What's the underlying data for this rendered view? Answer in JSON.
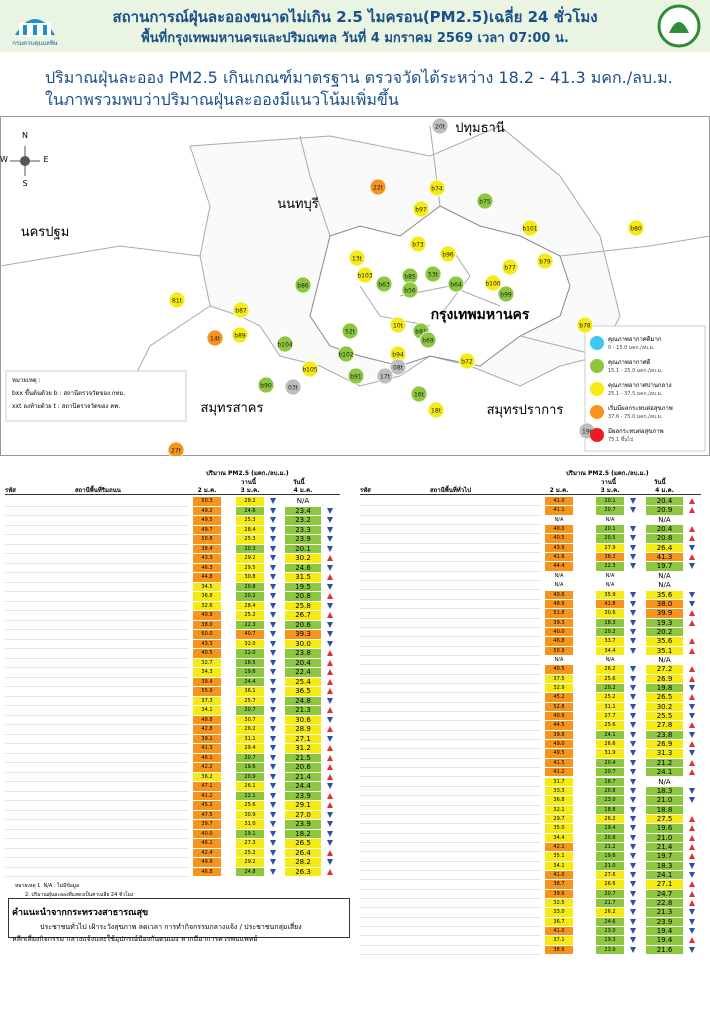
{
  "header": {
    "logo_text": "กรมควบคุมมลพิษ",
    "title": "สถานการณ์ฝุ่นละอองขนาดไม่เกิน 2.5 ไมครอน(PM2.5)เฉลี่ย 24 ชั่วโมง",
    "subtitle": "พื้นที่กรุงเทพมหานครและปริมณฑล วันที่ 4 มกราคม 2569 เวลา 07:00 น."
  },
  "summary": [
    "ปริมาณฝุ่นละออง PM2.5 เกินเกณฑ์มาตรฐาน ตรวจวัดได้ระหว่าง 18.2 - 41.3 มคก./ลบ.ม.",
    "ในภาพรวมพบว่าปริมาณฝุ่นละอองมีแนวโน้มเพิ่มขึ้น"
  ],
  "map": {
    "compass": [
      "N",
      "E",
      "S",
      "W"
    ],
    "provinces": [
      "ปทุมธานี",
      "นนทบุรี",
      "นครปฐม",
      "กรุงเทพมหานคร",
      "สมุทรสาคร",
      "สมุทรปราการ"
    ],
    "stations": [
      {
        "label": "20t",
        "color": "#bdbdbd"
      },
      {
        "label": "22t",
        "color": "#f7941d"
      },
      {
        "label": "b74",
        "color": "#f5ea14"
      },
      {
        "label": "b75",
        "color": "#8dc63f"
      },
      {
        "label": "b97",
        "color": "#f5ea14"
      },
      {
        "label": "b80",
        "color": "#f5ea14"
      },
      {
        "label": "b101",
        "color": "#f5ea14"
      },
      {
        "label": "b73",
        "color": "#f5ea14"
      },
      {
        "label": "b96",
        "color": "#f5ea14"
      },
      {
        "label": "b77",
        "color": "#f5ea14"
      },
      {
        "label": "b79",
        "color": "#f5ea14"
      },
      {
        "label": "13t",
        "color": "#f5ea14"
      },
      {
        "label": "b103",
        "color": "#f5ea14"
      },
      {
        "label": "b85",
        "color": "#8dc63f"
      },
      {
        "label": "53t",
        "color": "#8dc63f"
      },
      {
        "label": "b86",
        "color": "#8dc63f"
      },
      {
        "label": "b63",
        "color": "#8dc63f"
      },
      {
        "label": "b64",
        "color": "#8dc63f"
      },
      {
        "label": "b100",
        "color": "#f5ea14"
      },
      {
        "label": "b99",
        "color": "#8dc63f"
      },
      {
        "label": "b56",
        "color": "#8dc63f"
      },
      {
        "label": "b87",
        "color": "#f5ea14"
      },
      {
        "label": "81t",
        "color": "#f5ea14"
      },
      {
        "label": "14t",
        "color": "#f7941d"
      },
      {
        "label": "b89",
        "color": "#f5ea14"
      },
      {
        "label": "b104",
        "color": "#8dc63f"
      },
      {
        "label": "b78",
        "color": "#f5ea14"
      },
      {
        "label": "52t",
        "color": "#8dc63f"
      },
      {
        "label": "b102",
        "color": "#8dc63f"
      },
      {
        "label": "b91",
        "color": "#8dc63f"
      },
      {
        "label": "b81",
        "color": "#8dc63f"
      },
      {
        "label": "10t",
        "color": "#f5ea14"
      },
      {
        "label": "b94",
        "color": "#f5ea14"
      },
      {
        "label": "08t",
        "color": "#bdbdbd"
      },
      {
        "label": "17t",
        "color": "#bdbdbd"
      },
      {
        "label": "b72",
        "color": "#f5ea14"
      },
      {
        "label": "b90",
        "color": "#8dc63f"
      },
      {
        "label": "03t",
        "color": "#bdbdbd"
      },
      {
        "label": "b105",
        "color": "#f5ea14"
      },
      {
        "label": "18t",
        "color": "#f5ea14"
      },
      {
        "label": "16t",
        "color": "#8dc63f"
      },
      {
        "label": "19t",
        "color": "#bdbdbd"
      },
      {
        "label": "27t",
        "color": "#f7941d"
      },
      {
        "label": "b69",
        "color": "#8dc63f"
      }
    ],
    "notes": [
      "หมายเหตุ :",
      "bxx ขึ้นต้นด้วย b : สถานีตรวจวัดของ กทม.",
      "xxt ลงท้ายด้วย t : สถานีตรวจวัดของ คพ."
    ],
    "legend": [
      {
        "label": "คุณภาพอากาศดีมาก",
        "range": "0 - 15.0 มคก./ลบ.ม.",
        "color": "#3ec6f0"
      },
      {
        "label": "คุณภาพอากาศดี",
        "range": "15.1 - 25.0 มคก./ลบ.ม.",
        "color": "#8dc63f"
      },
      {
        "label": "คุณภาพอากาศปานกลาง",
        "range": "25.1 - 37.5 มคก./ลบ.ม.",
        "color": "#f5ea14"
      },
      {
        "label": "เริ่มมีผลกระทบต่อสุขภาพ",
        "range": "37.6 - 75.0 มคก./ลบ.ม.",
        "color": "#f7941d"
      },
      {
        "label": "มีผลกระทบต่อสุขภาพ",
        "range": "75.1 ขึ้นไป",
        "color": "#ed1c24"
      }
    ]
  },
  "tables": [
    {
      "caption": "ปริมาณ PM2.5 (มคก./ลบ.ม.)",
      "code_header": "รหัส",
      "name_header": "สถานีพื้นที่ริมถนน",
      "day_labels": [
        "วานนี้",
        "วันนี้"
      ],
      "dates": [
        "2 ม.ค.",
        "3 ม.ค.",
        "4 ม.ค."
      ],
      "rows": [
        [
          "50.3",
          "28.2",
          "N/A"
        ],
        [
          "49.2",
          "24.6",
          "23.4"
        ],
        [
          "49.5",
          "25.3",
          "23.2"
        ],
        [
          "49.7",
          "28.4",
          "23.3"
        ],
        [
          "50.8",
          "25.3",
          "23.9"
        ],
        [
          "38.4",
          "20.3",
          "20.1"
        ],
        [
          "43.3",
          "29.2",
          "30.2"
        ],
        [
          "46.3",
          "29.5",
          "24.6"
        ],
        [
          "44.8",
          "30.8",
          "31.5"
        ],
        [
          "34.5",
          "20.8",
          "19.5"
        ],
        [
          "36.8",
          "20.2",
          "20.8"
        ],
        [
          "32.6",
          "28.4",
          "25.8"
        ],
        [
          "40.9",
          "25.2",
          "26.7"
        ],
        [
          "38.0",
          "22.3",
          "20.6"
        ],
        [
          "60.0",
          "40.7",
          "39.3"
        ],
        [
          "43.3",
          "32.0",
          "30.0"
        ],
        [
          "40.5",
          "22.0",
          "23.8"
        ],
        [
          "32.7",
          "18.5",
          "20.4"
        ],
        [
          "34.3",
          "19.6",
          "22.4"
        ],
        [
          "39.4",
          "24.4",
          "25.4"
        ],
        [
          "55.9",
          "36.1",
          "36.5"
        ],
        [
          "37.3",
          "25.7",
          "24.8"
        ],
        [
          "34.1",
          "20.7",
          "21.3"
        ],
        [
          "48.8",
          "30.7",
          "30.6"
        ],
        [
          "42.8",
          "26.2",
          "28.9"
        ],
        [
          "39.1",
          "31.1",
          "27.1"
        ],
        [
          "41.3",
          "29.4",
          "31.2"
        ],
        [
          "46.1",
          "20.7",
          "21.5"
        ],
        [
          "42.2",
          "19.6",
          "20.6"
        ],
        [
          "36.2",
          "20.9",
          "21.4"
        ],
        [
          "47.1",
          "26.1",
          "24.4"
        ],
        [
          "41.2",
          "22.1",
          "23.9"
        ],
        [
          "45.2",
          "25.6",
          "29.1"
        ],
        [
          "47.5",
          "30.9",
          "27.0"
        ],
        [
          "39.7",
          "31.0",
          "23.9"
        ],
        [
          "40.0",
          "19.1",
          "18.2"
        ],
        [
          "46.1",
          "27.3",
          "26.5"
        ],
        [
          "42.4",
          "25.2",
          "26.4"
        ],
        [
          "49.9",
          "29.2",
          "28.2"
        ],
        [
          "46.8",
          "24.8",
          "26.3"
        ]
      ],
      "notes": [
        "หมายเหตุ 1. N/A : ไม่มีข้อมูล",
        "2. ปริมาณฝุ่นละอองที่แสดงเป็นค่าเฉลี่ย 24 ชั่วโมง"
      ]
    },
    {
      "caption": "ปริมาณ PM2.5 (มคก./ลบ.ม.)",
      "code_header": "รหัส",
      "name_header": "สถานีพื้นที่ทั่วไป",
      "day_labels": [
        "วานนี้",
        "วันนี้"
      ],
      "dates": [
        "2 ม.ค.",
        "3 ม.ค.",
        "4 ม.ค."
      ],
      "rows": [
        [
          "41.0",
          "20.1",
          "20.4"
        ],
        [
          "41.1",
          "20.7",
          "20.9"
        ],
        [
          "N/A",
          "N/A",
          "N/A"
        ],
        [
          "40.0",
          "20.1",
          "20.4"
        ],
        [
          "40.5",
          "20.5",
          "20.8"
        ],
        [
          "43.9",
          "27.9",
          "26.4"
        ],
        [
          "41.6",
          "38.2",
          "41.3"
        ],
        [
          "44.4",
          "22.3",
          "19.7"
        ],
        [
          "N/A",
          "N/A",
          "N/A"
        ],
        [
          "N/A",
          "N/A",
          "N/A"
        ],
        [
          "40.6",
          "35.9",
          "35.6"
        ],
        [
          "48.9",
          "41.8",
          "38.0"
        ],
        [
          "51.8",
          "30.6",
          "39.9"
        ],
        [
          "39.3",
          "18.3",
          "19.3"
        ],
        [
          "40.0",
          "20.2",
          "20.2"
        ],
        [
          "46.8",
          "33.7",
          "35.6"
        ],
        [
          "50.9",
          "34.4",
          "35.1"
        ],
        [
          "N/A",
          "N/A",
          "N/A"
        ],
        [
          "40.5",
          "26.2",
          "27.2"
        ],
        [
          "37.5",
          "25.6",
          "26.9"
        ],
        [
          "32.9",
          "20.2",
          "19.8"
        ],
        [
          "45.2",
          "25.2",
          "26.5"
        ],
        [
          "52.8",
          "31.1",
          "30.2"
        ],
        [
          "40.9",
          "27.7",
          "25.5"
        ],
        [
          "44.5",
          "25.6",
          "27.8"
        ],
        [
          "39.8",
          "24.1",
          "23.8"
        ],
        [
          "49.0",
          "26.6",
          "26.9"
        ],
        [
          "49.5",
          "31.9",
          "31.3"
        ],
        [
          "41.5",
          "20.4",
          "21.2"
        ],
        [
          "41.2",
          "20.7",
          "24.1"
        ],
        [
          "31.7",
          "18.7",
          "N/A"
        ],
        [
          "33.3",
          "20.8",
          "18.3"
        ],
        [
          "36.8",
          "23.0",
          "21.0"
        ],
        [
          "32.1",
          "18.8",
          "18.8"
        ],
        [
          "29.7",
          "26.2",
          "27.5"
        ],
        [
          "35.0",
          "19.4",
          "19.6"
        ],
        [
          "34.4",
          "20.8",
          "21.0"
        ],
        [
          "42.1",
          "21.2",
          "21.4"
        ],
        [
          "35.1",
          "19.6",
          "19.7"
        ],
        [
          "34.1",
          "21.0",
          "18.3"
        ],
        [
          "41.0",
          "27.6",
          "24.1"
        ],
        [
          "38.7",
          "26.6",
          "27.1"
        ],
        [
          "39.6",
          "20.7",
          "24.7"
        ],
        [
          "32.5",
          "21.7",
          "22.8"
        ],
        [
          "33.0",
          "26.2",
          "21.3"
        ],
        [
          "36.7",
          "24.6",
          "23.9"
        ],
        [
          "41.0",
          "23.0",
          "19.4"
        ],
        [
          "37.1",
          "19.3",
          "19.4"
        ],
        [
          "38.6",
          "23.0",
          "21.6"
        ]
      ]
    }
  ],
  "advice": {
    "title": "คำแนะนำจากกระทรวงสาธารณสุข",
    "lines": [
      "ประชาชนทั่วไป เฝ้าระวังสุขภาพ ลดเวลา การทำกิจกรรมกลางแจ้ง / ประชาชนกลุ่มเสี่ยง",
      "หลีกเลี่ยงกิจกรรม กลางแจ้งและใช้อุปกรณ์ป้องกันตนเอง หากมีอาการควรพบแพทย์"
    ]
  }
}
